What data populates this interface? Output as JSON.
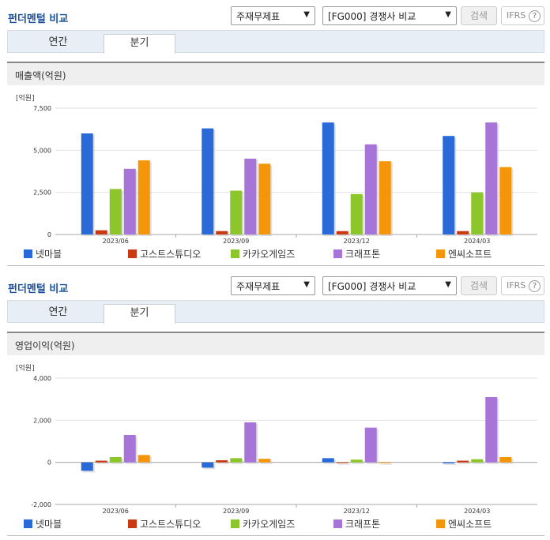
{
  "panels": [
    {
      "title": "펀더멘털 비교",
      "select1": "주재무제표",
      "select2": "[FG000] 경쟁사 비교",
      "search_label": "검색",
      "ifrs_label": "IFRS",
      "ifrs_help": "?",
      "tabs": [
        "연간",
        "분기"
      ],
      "metric": "매출액(억원)",
      "unit": "[억원]"
    },
    {
      "title": "펀더멘털 비교",
      "select1": "주재무제표",
      "select2": "[FG000] 경쟁사 비교",
      "search_label": "검색",
      "ifrs_label": "IFRS",
      "ifrs_help": "?",
      "tabs": [
        "연간",
        "분기"
      ],
      "metric": "영업이익(억원)",
      "unit": "[억원]"
    }
  ],
  "legend": [
    "넷마블",
    "고스트스튜디오",
    "카카오게임즈",
    "크래프톤",
    "엔씨소프트"
  ],
  "colors": [
    "#2a6ad8",
    "#c93a12",
    "#8cc62a",
    "#a775d8",
    "#f5960a"
  ],
  "chart_data": [
    {
      "type": "bar",
      "title": "매출액(억원)",
      "ylabel": "[억원]",
      "categories": [
        "2023/06",
        "2023/09",
        "2023/12",
        "2024/03"
      ],
      "ylim": [
        0,
        7500
      ],
      "yticks": [
        0,
        2500,
        5000,
        7500
      ],
      "ytick_labels": [
        "0",
        "2,500",
        "5,000",
        "7,500"
      ],
      "series": [
        {
          "name": "넷마블",
          "values": [
            6000,
            6300,
            6650,
            5850
          ]
        },
        {
          "name": "고스트스튜디오",
          "values": [
            250,
            200,
            200,
            200
          ]
        },
        {
          "name": "카카오게임즈",
          "values": [
            2700,
            2600,
            2400,
            2500
          ]
        },
        {
          "name": "크래프톤",
          "values": [
            3900,
            4500,
            5350,
            6650
          ]
        },
        {
          "name": "엔씨소프트",
          "values": [
            4400,
            4200,
            4350,
            4000
          ]
        }
      ]
    },
    {
      "type": "bar",
      "title": "영업이익(억원)",
      "ylabel": "[억원]",
      "categories": [
        "2023/06",
        "2023/09",
        "2023/12",
        "2024/03"
      ],
      "ylim": [
        -2000,
        4000
      ],
      "yticks": [
        -2000,
        0,
        2000,
        4000
      ],
      "ytick_labels": [
        "-2,000",
        "0",
        "2,000",
        "4,000"
      ],
      "series": [
        {
          "name": "넷마블",
          "values": [
            -400,
            -250,
            200,
            -50
          ]
        },
        {
          "name": "고스트스튜디오",
          "values": [
            80,
            100,
            -30,
            80
          ]
        },
        {
          "name": "카카오게임즈",
          "values": [
            250,
            200,
            130,
            150
          ]
        },
        {
          "name": "크래프톤",
          "values": [
            1300,
            1900,
            1650,
            3100
          ]
        },
        {
          "name": "엔씨소프트",
          "values": [
            350,
            170,
            -20,
            250
          ]
        }
      ]
    }
  ]
}
